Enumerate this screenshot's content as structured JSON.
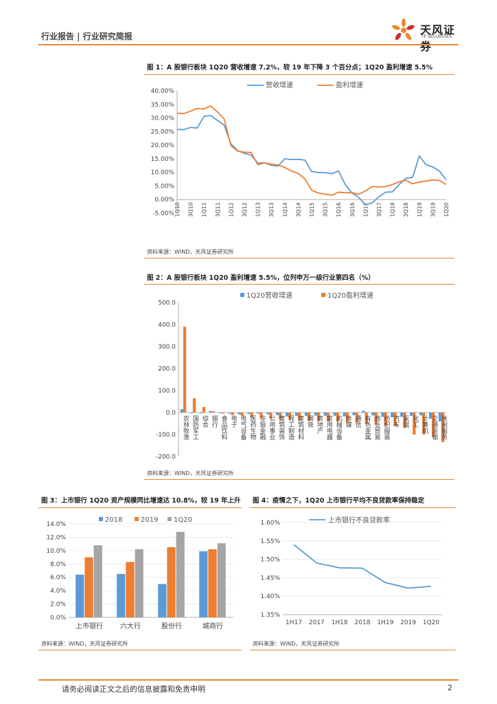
{
  "header": {
    "left": "行业报告 | 行业研究简报"
  },
  "logo": {
    "name": "天风证券",
    "sub": "TF SECURITIES"
  },
  "colors": {
    "accent": "#e8892e",
    "blue": "#5b9bd5",
    "orange": "#ed7d31",
    "gray": "#a5a5a5"
  },
  "fig1": {
    "title": "图 1：A 股银行板块 1Q20 营收增速 7.2%，较 19 年下降 3 个百分点；1Q20 盈利增速 5.5%",
    "source": "资料来源：WIND，天风证券研究所"
  },
  "fig2": {
    "title": "图 2：A 股银行板块 1Q20 盈利增速 5.5%，位列申万一级行业第四名（%）",
    "source": "资料来源：WIND，天风证券研究所"
  },
  "fig3": {
    "title": "图 3：上市银行 1Q20 资产规模同比增速达 10.8%，较 19 年上升",
    "source": "资料来源：WIND，天风证券研究所"
  },
  "fig4": {
    "title": "图 4：疫情之下，1Q20 上市银行平均不良贷款率保持稳定",
    "source": "资料来源：WIND，天风证券研究所"
  },
  "footer": {
    "disclaimer": "请务必阅读正文之后的信息披露和免责申明",
    "page": "2"
  },
  "chart_data": [
    {
      "type": "line",
      "x": [
        "1Q10",
        "2Q10",
        "3Q10",
        "4Q10",
        "1Q11",
        "2Q11",
        "3Q11",
        "4Q11",
        "1Q12",
        "2Q12",
        "3Q12",
        "4Q12",
        "1Q13",
        "2Q13",
        "3Q13",
        "4Q13",
        "1Q14",
        "2Q14",
        "3Q14",
        "4Q14",
        "1Q15",
        "2Q15",
        "3Q15",
        "4Q15",
        "1Q16",
        "2Q16",
        "3Q16",
        "4Q16",
        "1Q17",
        "2Q17",
        "3Q17",
        "4Q17",
        "1Q18",
        "2Q18",
        "3Q18",
        "4Q18",
        "1Q19",
        "2Q19",
        "3Q19",
        "4Q19",
        "1Q20"
      ],
      "xticks": [
        "1Q10",
        "3Q10",
        "1Q11",
        "3Q11",
        "1Q12",
        "3Q12",
        "1Q13",
        "3Q13",
        "1Q14",
        "3Q14",
        "1Q15",
        "3Q15",
        "1Q16",
        "3Q16",
        "1Q17",
        "3Q17",
        "1Q18",
        "3Q18",
        "1Q19",
        "3Q19",
        "1Q20"
      ],
      "series": [
        {
          "name": "营收增速",
          "values": [
            25.8,
            25.7,
            26.5,
            26.3,
            30.6,
            30.9,
            29.1,
            27.3,
            20.5,
            18.0,
            17.0,
            16.3,
            13.4,
            13.5,
            12.6,
            12.3,
            15.0,
            14.7,
            14.8,
            14.5,
            10.3,
            9.9,
            9.9,
            9.5,
            10.5,
            5.5,
            2.4,
            0.8,
            -2.0,
            -1.2,
            1.0,
            2.7,
            2.8,
            5.5,
            7.8,
            8.1,
            16.0,
            12.8,
            12.0,
            10.5,
            7.2
          ]
        },
        {
          "name": "盈利增速",
          "values": [
            31.7,
            31.6,
            32.5,
            33.5,
            33.3,
            34.4,
            32.2,
            29.6,
            19.8,
            17.8,
            17.4,
            17.3,
            12.8,
            13.5,
            13.0,
            12.7,
            11.8,
            10.5,
            9.6,
            7.6,
            3.4,
            2.4,
            2.0,
            1.6,
            2.7,
            2.5,
            2.5,
            1.9,
            3.2,
            4.8,
            4.6,
            4.8,
            5.5,
            6.5,
            7.1,
            5.8,
            6.4,
            6.8,
            7.2,
            7.0,
            5.5
          ]
        }
      ],
      "ylim": [
        -5,
        40
      ],
      "yticks": [
        "-5.00%",
        "0.00%",
        "5.00%",
        "10.00%",
        "15.00%",
        "20.00%",
        "25.00%",
        "30.00%",
        "35.00%",
        "40.00%"
      ],
      "legend": "top-center"
    },
    {
      "type": "bar",
      "categories": [
        "农林牧渔",
        "国防军工",
        "综合",
        "银行",
        "食品饮料",
        "电子",
        "电气设备",
        "医药生物",
        "非银金融",
        "公用事业",
        "建筑装饰",
        "轻工制造",
        "建筑材料",
        "钢铁",
        "房地产",
        "家用电器",
        "机械设备",
        "传媒",
        "通信",
        "有色金属",
        "商业贸易",
        "纺织服装",
        "汽车",
        "采掘",
        "化工",
        "计算机",
        "交通运输",
        "休闲服务"
      ],
      "series": [
        {
          "name": "1Q20营收增速",
          "values": [
            15,
            -3,
            -4,
            7.2,
            -3,
            -5,
            -8,
            -6,
            -5,
            -8,
            -12,
            -18,
            -15,
            -15,
            -14,
            -15,
            -15,
            -18,
            -12,
            8,
            -13,
            -20,
            -22,
            -20,
            -15,
            -13,
            -28,
            -40
          ]
        },
        {
          "name": "1Q20盈利增速",
          "values": [
            390,
            65,
            25,
            5.5,
            -5,
            -12,
            -15,
            -22,
            -25,
            -28,
            -30,
            -30,
            -35,
            -38,
            -40,
            -40,
            -42,
            -45,
            -45,
            -50,
            -55,
            -60,
            -62,
            -70,
            -100,
            -100,
            -110,
            -135
          ]
        }
      ],
      "ylim": [
        -200,
        500
      ],
      "yticks": [
        "500.0",
        "400.0",
        "300.0",
        "200.0",
        "100.0",
        "0.0",
        "-100.0",
        "-200.0"
      ],
      "legend": "top-center"
    },
    {
      "type": "bar",
      "categories": [
        "上市银行",
        "六大行",
        "股份行",
        "城商行"
      ],
      "series": [
        {
          "name": "2018",
          "values": [
            6.4,
            6.5,
            5.0,
            9.9
          ]
        },
        {
          "name": "2019",
          "values": [
            9.0,
            8.3,
            10.5,
            10.2
          ]
        },
        {
          "name": "1Q20",
          "values": [
            10.8,
            10.2,
            12.8,
            11.1
          ]
        }
      ],
      "ylim": [
        0,
        14
      ],
      "yticks": [
        "0.0%",
        "2.0%",
        "4.0%",
        "6.0%",
        "8.0%",
        "10.0%",
        "12.0%",
        "14.0%"
      ],
      "legend": "top"
    },
    {
      "type": "line",
      "x": [
        "1H17",
        "2017",
        "1H18",
        "2018",
        "1H19",
        "2019",
        "1Q20"
      ],
      "series": [
        {
          "name": "上市银行不良贷款率",
          "values": [
            1.54,
            1.49,
            1.477,
            1.476,
            1.437,
            1.422,
            1.427
          ]
        }
      ],
      "ylim": [
        1.35,
        1.6
      ],
      "yticks": [
        "1.35%",
        "1.40%",
        "1.45%",
        "1.50%",
        "1.55%",
        "1.60%"
      ],
      "legend": "top"
    }
  ]
}
